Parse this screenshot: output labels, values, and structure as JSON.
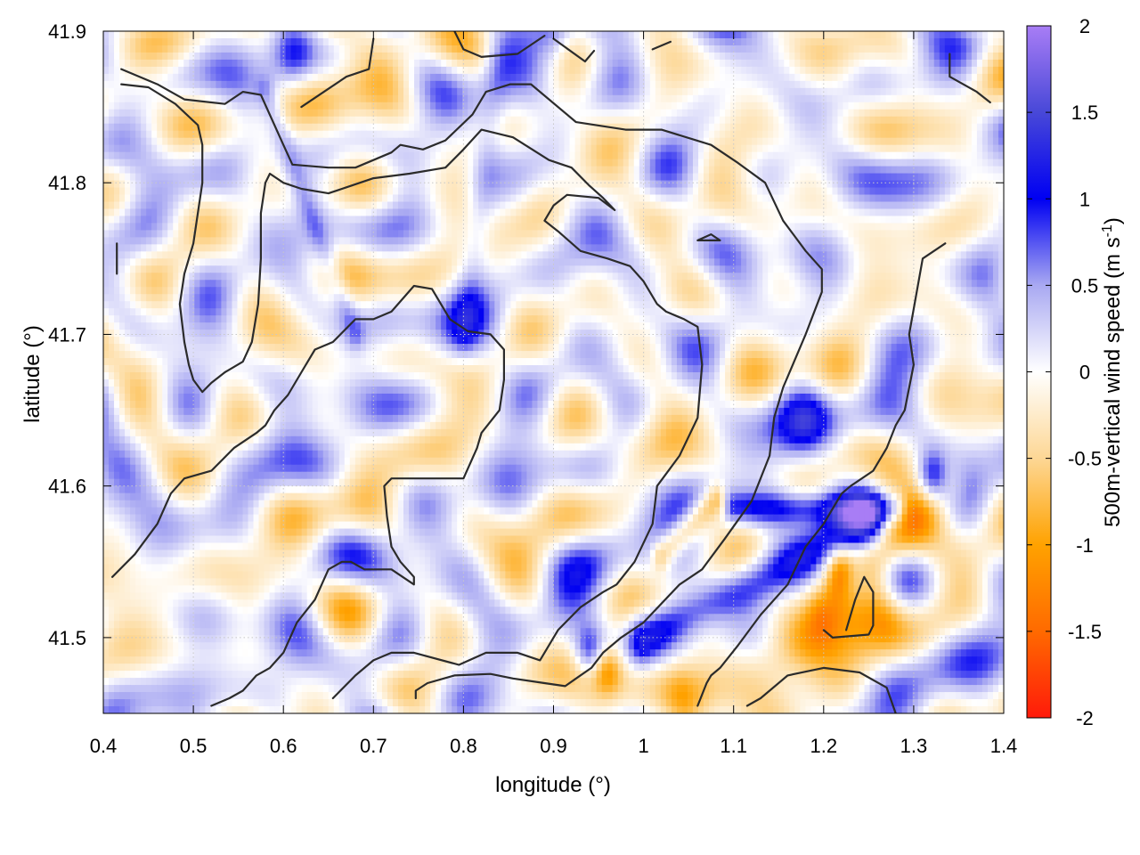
{
  "chart_data": {
    "type": "heatmap",
    "xlabel": "longitude (°)",
    "ylabel": "latitude (°)",
    "colorbar_label": "500m-vertical wind speed (m s-1)",
    "colorbar_label_parts": {
      "prefix": "500m-vertical wind speed (m s",
      "sup": "-1",
      "suffix": ")"
    },
    "xlim": [
      0.4,
      1.4
    ],
    "ylim": [
      41.45,
      41.9
    ],
    "clim": [
      -2,
      2
    ],
    "grid": true,
    "x_ticks": [
      0.4,
      0.5,
      0.6,
      0.7,
      0.8,
      0.9,
      1.0,
      1.1,
      1.2,
      1.3,
      1.4
    ],
    "x_tick_labels": [
      "0.4",
      "0.5",
      "0.6",
      "0.7",
      "0.8",
      "0.9",
      "1",
      "1.1",
      "1.2",
      "1.3",
      "1.4"
    ],
    "y_ticks": [
      41.5,
      41.6,
      41.7,
      41.8,
      41.9
    ],
    "y_tick_labels": [
      "41.5",
      "41.6",
      "41.7",
      "41.8",
      "41.9"
    ],
    "colorbar_ticks": [
      2,
      1.5,
      1,
      0.5,
      0,
      -0.5,
      -1,
      -1.5,
      -2
    ],
    "colorbar_tick_labels": [
      "2",
      "1.5",
      "1",
      "0.5",
      "0",
      "-0.5",
      "-1",
      "-1.5",
      "-2"
    ],
    "colormap": [
      {
        "value": -2,
        "color": "#ff1a0a"
      },
      {
        "value": -1.5,
        "color": "#ff6a00"
      },
      {
        "value": -1,
        "color": "#ffa200"
      },
      {
        "value": -0.5,
        "color": "#fdd795"
      },
      {
        "value": 0,
        "color": "#ffffff"
      },
      {
        "value": 0.5,
        "color": "#a9a9f2"
      },
      {
        "value": 1,
        "color": "#0000f2"
      },
      {
        "value": 1.5,
        "color": "#4848d8"
      },
      {
        "value": 2,
        "color": "#a87df5"
      }
    ],
    "field_features": [
      {
        "type": "band",
        "from": [
          1.0,
          41.5
        ],
        "to": [
          1.25,
          41.575
        ],
        "width": 0.012,
        "amp": 1.1
      },
      {
        "type": "band",
        "from": [
          1.1,
          41.585
        ],
        "to": [
          1.28,
          41.585
        ],
        "width": 0.008,
        "amp": 0.9
      },
      {
        "type": "band",
        "from": [
          1.02,
          41.555
        ],
        "to": [
          1.08,
          41.59
        ],
        "width": 0.008,
        "amp": -1.0
      },
      {
        "type": "band",
        "from": [
          1.05,
          41.46
        ],
        "to": [
          1.26,
          41.52
        ],
        "width": 0.018,
        "amp": -0.85
      },
      {
        "type": "band",
        "from": [
          1.2,
          41.52
        ],
        "to": [
          1.34,
          41.6
        ],
        "width": 0.014,
        "amp": -0.7
      },
      {
        "type": "band",
        "from": [
          0.58,
          41.86
        ],
        "to": [
          0.68,
          41.7
        ],
        "width": 0.008,
        "amp": 0.45
      },
      {
        "type": "band",
        "from": [
          0.84,
          41.88
        ],
        "to": [
          0.8,
          41.7
        ],
        "width": 0.012,
        "amp": 0.35
      },
      {
        "type": "blob",
        "at": [
          0.61,
          41.885
        ],
        "radius": 0.018,
        "amp": 1.0
      },
      {
        "type": "blob",
        "at": [
          0.66,
          41.855
        ],
        "radius": 0.03,
        "amp": -0.7
      },
      {
        "type": "blob",
        "at": [
          0.96,
          41.48
        ],
        "radius": 0.012,
        "amp": -0.9
      },
      {
        "type": "blob",
        "at": [
          0.94,
          41.49
        ],
        "radius": 0.012,
        "amp": 0.9
      },
      {
        "type": "blob",
        "at": [
          1.32,
          41.605
        ],
        "radius": 0.012,
        "amp": 0.9
      },
      {
        "type": "blob",
        "at": [
          1.22,
          41.545
        ],
        "radius": 0.012,
        "amp": -1.2
      },
      {
        "type": "blob",
        "at": [
          1.23,
          41.54
        ],
        "radius": 0.012,
        "amp": 0.85
      },
      {
        "type": "blob",
        "at": [
          1.18,
          41.645
        ],
        "radius": 0.02,
        "amp": 0.6
      },
      {
        "type": "blob",
        "at": [
          0.9,
          41.9
        ],
        "radius": 0.015,
        "amp": 0.6
      }
    ],
    "contours": [
      [
        [
          0.42,
          41.875
        ],
        [
          0.46,
          41.865
        ],
        [
          0.49,
          41.855
        ],
        [
          0.535,
          41.852
        ],
        [
          0.555,
          41.86
        ],
        [
          0.575,
          41.858
        ],
        [
          0.6,
          41.825
        ],
        [
          0.61,
          41.812
        ],
        [
          0.65,
          41.81
        ],
        [
          0.68,
          41.81
        ],
        [
          0.72,
          41.82
        ],
        [
          0.73,
          41.825
        ],
        [
          0.755,
          41.822
        ],
        [
          0.78,
          41.828
        ],
        [
          0.81,
          41.845
        ],
        [
          0.825,
          41.86
        ],
        [
          0.852,
          41.865
        ],
        [
          0.875,
          41.865
        ],
        [
          0.925,
          41.84
        ],
        [
          0.98,
          41.835
        ],
        [
          1.02,
          41.835
        ],
        [
          1.075,
          41.825
        ],
        [
          1.105,
          41.813
        ],
        [
          1.135,
          41.8
        ],
        [
          1.155,
          41.775
        ],
        [
          1.18,
          41.755
        ],
        [
          1.198,
          41.743
        ],
        [
          1.198,
          41.728
        ],
        [
          1.18,
          41.7
        ],
        [
          1.155,
          41.665
        ],
        [
          1.145,
          41.645
        ],
        [
          1.14,
          41.62
        ],
        [
          1.12,
          41.59
        ],
        [
          1.09,
          41.565
        ],
        [
          1.065,
          41.545
        ],
        [
          1.04,
          41.535
        ],
        [
          1.0,
          41.51
        ],
        [
          0.975,
          41.5
        ],
        [
          0.955,
          41.49
        ],
        [
          0.942,
          41.48
        ],
        [
          0.925,
          41.473
        ],
        [
          0.913,
          41.468
        ],
        [
          0.89,
          41.47
        ],
        [
          0.855,
          41.473
        ],
        [
          0.83,
          41.476
        ],
        [
          0.79,
          41.475
        ],
        [
          0.76,
          41.47
        ],
        [
          0.747,
          41.465
        ],
        [
          0.747,
          41.46
        ]
      ],
      [
        [
          0.42,
          41.865
        ],
        [
          0.45,
          41.863
        ],
        [
          0.48,
          41.852
        ],
        [
          0.505,
          41.838
        ],
        [
          0.51,
          41.825
        ],
        [
          0.51,
          41.8
        ],
        [
          0.5,
          41.76
        ],
        [
          0.49,
          41.74
        ],
        [
          0.485,
          41.72
        ],
        [
          0.49,
          41.695
        ],
        [
          0.495,
          41.68
        ],
        [
          0.5,
          41.67
        ],
        [
          0.51,
          41.662
        ],
        [
          0.52,
          41.668
        ],
        [
          0.535,
          41.675
        ],
        [
          0.555,
          41.682
        ],
        [
          0.565,
          41.695
        ],
        [
          0.572,
          41.72
        ],
        [
          0.575,
          41.75
        ],
        [
          0.575,
          41.78
        ],
        [
          0.58,
          41.8
        ],
        [
          0.585,
          41.806
        ],
        [
          0.6,
          41.8
        ],
        [
          0.62,
          41.796
        ],
        [
          0.65,
          41.793
        ],
        [
          0.67,
          41.797
        ],
        [
          0.7,
          41.803
        ],
        [
          0.74,
          41.806
        ],
        [
          0.78,
          41.81
        ],
        [
          0.8,
          41.822
        ],
        [
          0.82,
          41.835
        ],
        [
          0.855,
          41.83
        ],
        [
          0.895,
          41.815
        ],
        [
          0.92,
          41.81
        ],
        [
          0.94,
          41.798
        ],
        [
          0.955,
          41.79
        ],
        [
          0.968,
          41.782
        ],
        [
          0.95,
          41.79
        ],
        [
          0.915,
          41.792
        ],
        [
          0.9,
          41.785
        ],
        [
          0.89,
          41.775
        ],
        [
          0.905,
          41.768
        ],
        [
          0.93,
          41.755
        ],
        [
          0.96,
          41.75
        ],
        [
          0.985,
          41.745
        ],
        [
          1.0,
          41.735
        ],
        [
          1.015,
          41.72
        ],
        [
          1.025,
          41.715
        ],
        [
          1.045,
          41.71
        ],
        [
          1.06,
          41.705
        ],
        [
          1.065,
          41.68
        ],
        [
          1.06,
          41.645
        ],
        [
          1.04,
          41.62
        ],
        [
          1.015,
          41.6
        ],
        [
          1.01,
          41.575
        ],
        [
          0.99,
          41.55
        ],
        [
          0.97,
          41.535
        ],
        [
          0.955,
          41.53
        ],
        [
          0.93,
          41.52
        ],
        [
          0.905,
          41.505
        ],
        [
          0.885,
          41.485
        ],
        [
          0.86,
          41.49
        ],
        [
          0.825,
          41.49
        ],
        [
          0.795,
          41.482
        ],
        [
          0.745,
          41.49
        ],
        [
          0.73,
          41.49
        ],
        [
          0.72,
          41.49
        ],
        [
          0.7,
          41.485
        ],
        [
          0.68,
          41.475
        ],
        [
          0.655,
          41.46
        ]
      ],
      [
        [
          0.41,
          41.54
        ],
        [
          0.435,
          41.555
        ],
        [
          0.46,
          41.575
        ],
        [
          0.475,
          41.595
        ],
        [
          0.49,
          41.605
        ],
        [
          0.52,
          41.61
        ],
        [
          0.545,
          41.625
        ],
        [
          0.57,
          41.635
        ],
        [
          0.58,
          41.64
        ],
        [
          0.59,
          41.65
        ],
        [
          0.605,
          41.66
        ],
        [
          0.62,
          41.675
        ],
        [
          0.635,
          41.69
        ],
        [
          0.655,
          41.695
        ],
        [
          0.68,
          41.71
        ],
        [
          0.7,
          41.71
        ],
        [
          0.72,
          41.715
        ],
        [
          0.745,
          41.732
        ],
        [
          0.765,
          41.73
        ],
        [
          0.785,
          41.71
        ],
        [
          0.805,
          41.702
        ],
        [
          0.83,
          41.7
        ],
        [
          0.845,
          41.69
        ],
        [
          0.845,
          41.67
        ],
        [
          0.84,
          41.65
        ],
        [
          0.82,
          41.635
        ],
        [
          0.815,
          41.625
        ],
        [
          0.8,
          41.605
        ],
        [
          0.775,
          41.605
        ],
        [
          0.745,
          41.605
        ],
        [
          0.72,
          41.605
        ],
        [
          0.712,
          41.6
        ],
        [
          0.715,
          41.58
        ],
        [
          0.72,
          41.56
        ],
        [
          0.73,
          41.55
        ],
        [
          0.745,
          41.54
        ],
        [
          0.745,
          41.535
        ],
        [
          0.72,
          41.545
        ],
        [
          0.69,
          41.545
        ],
        [
          0.675,
          41.55
        ],
        [
          0.665,
          41.55
        ],
        [
          0.65,
          41.545
        ],
        [
          0.635,
          41.525
        ],
        [
          0.615,
          41.51
        ],
        [
          0.6,
          41.49
        ],
        [
          0.585,
          41.48
        ],
        [
          0.57,
          41.475
        ],
        [
          0.555,
          41.465
        ],
        [
          0.54,
          41.46
        ],
        [
          0.52,
          41.455
        ]
      ],
      [
        [
          1.335,
          41.76
        ],
        [
          1.31,
          41.75
        ],
        [
          1.295,
          41.7
        ],
        [
          1.3,
          41.68
        ],
        [
          1.29,
          41.65
        ],
        [
          1.28,
          41.64
        ],
        [
          1.27,
          41.625
        ],
        [
          1.255,
          41.61
        ],
        [
          1.23,
          41.6
        ],
        [
          1.22,
          41.595
        ],
        [
          1.21,
          41.585
        ],
        [
          1.2,
          41.575
        ],
        [
          1.18,
          41.56
        ],
        [
          1.16,
          41.535
        ],
        [
          1.13,
          41.515
        ],
        [
          1.105,
          41.495
        ],
        [
          1.085,
          41.48
        ],
        [
          1.075,
          41.475
        ],
        [
          1.07,
          41.47
        ],
        [
          1.06,
          41.455
        ]
      ],
      [
        [
          1.2,
          41.505
        ],
        [
          1.21,
          41.5
        ],
        [
          1.25,
          41.502
        ],
        [
          1.255,
          41.508
        ],
        [
          1.255,
          41.53
        ],
        [
          1.245,
          41.54
        ],
        [
          1.235,
          41.525
        ],
        [
          1.225,
          41.505
        ]
      ],
      [
        [
          1.115,
          41.455
        ],
        [
          1.13,
          41.46
        ],
        [
          1.16,
          41.475
        ],
        [
          1.2,
          41.48
        ],
        [
          1.24,
          41.477
        ],
        [
          1.27,
          41.467
        ],
        [
          1.28,
          41.45
        ]
      ],
      [
        [
          0.415,
          41.76
        ],
        [
          0.415,
          41.75
        ],
        [
          0.415,
          41.74
        ]
      ],
      [
        [
          0.62,
          41.85
        ],
        [
          0.645,
          41.86
        ],
        [
          0.67,
          41.87
        ],
        [
          0.695,
          41.875
        ],
        [
          0.7,
          41.895
        ]
      ],
      [
        [
          0.79,
          41.9
        ],
        [
          0.8,
          41.888
        ],
        [
          0.82,
          41.883
        ],
        [
          0.86,
          41.885
        ],
        [
          0.89,
          41.897
        ]
      ],
      [
        [
          0.9,
          41.895
        ],
        [
          0.935,
          41.88
        ],
        [
          0.945,
          41.887
        ]
      ],
      [
        [
          1.01,
          41.888
        ],
        [
          1.03,
          41.893
        ]
      ],
      [
        [
          1.34,
          41.885
        ],
        [
          1.34,
          41.87
        ],
        [
          1.37,
          41.86
        ],
        [
          1.385,
          41.853
        ]
      ],
      [
        [
          1.06,
          41.762
        ],
        [
          1.075,
          41.766
        ],
        [
          1.085,
          41.762
        ],
        [
          1.07,
          41.762
        ],
        [
          1.06,
          41.762
        ]
      ]
    ]
  }
}
